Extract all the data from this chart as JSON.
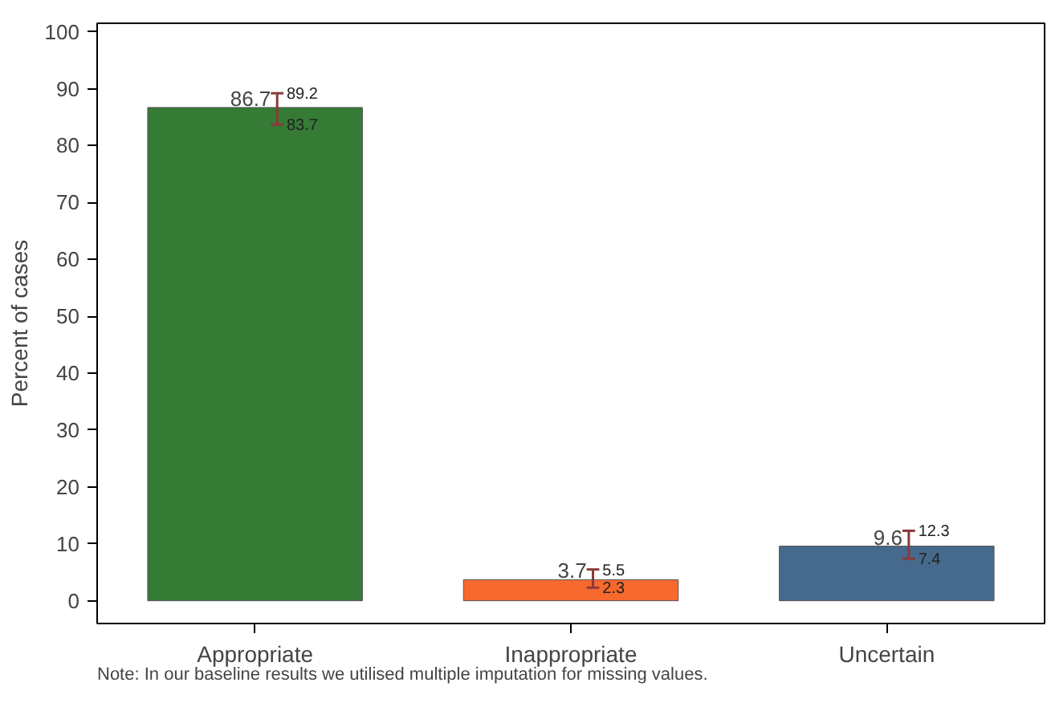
{
  "chart_data": {
    "type": "bar",
    "categories": [
      "Appropriate",
      "Inappropriate",
      "Uncertain"
    ],
    "values": [
      86.7,
      3.7,
      9.6
    ],
    "colors": [
      "#357a35",
      "#f7692d",
      "#456a8d"
    ],
    "errors": [
      [
        83.7,
        89.2
      ],
      [
        2.3,
        5.5
      ],
      [
        7.4,
        12.3
      ]
    ],
    "data_labels": true,
    "ylabel": "Percent of cases",
    "ylim": [
      -4,
      101.5
    ],
    "yticks": [
      0,
      10,
      20,
      30,
      40,
      50,
      60,
      70,
      80,
      90,
      100
    ],
    "grid": false,
    "annotations": [
      "83.7",
      "89.2",
      "2.3",
      "5.5",
      "7.4",
      "12.3",
      "Note: In our baseline results we utilised multiple imputation for missing values."
    ]
  }
}
